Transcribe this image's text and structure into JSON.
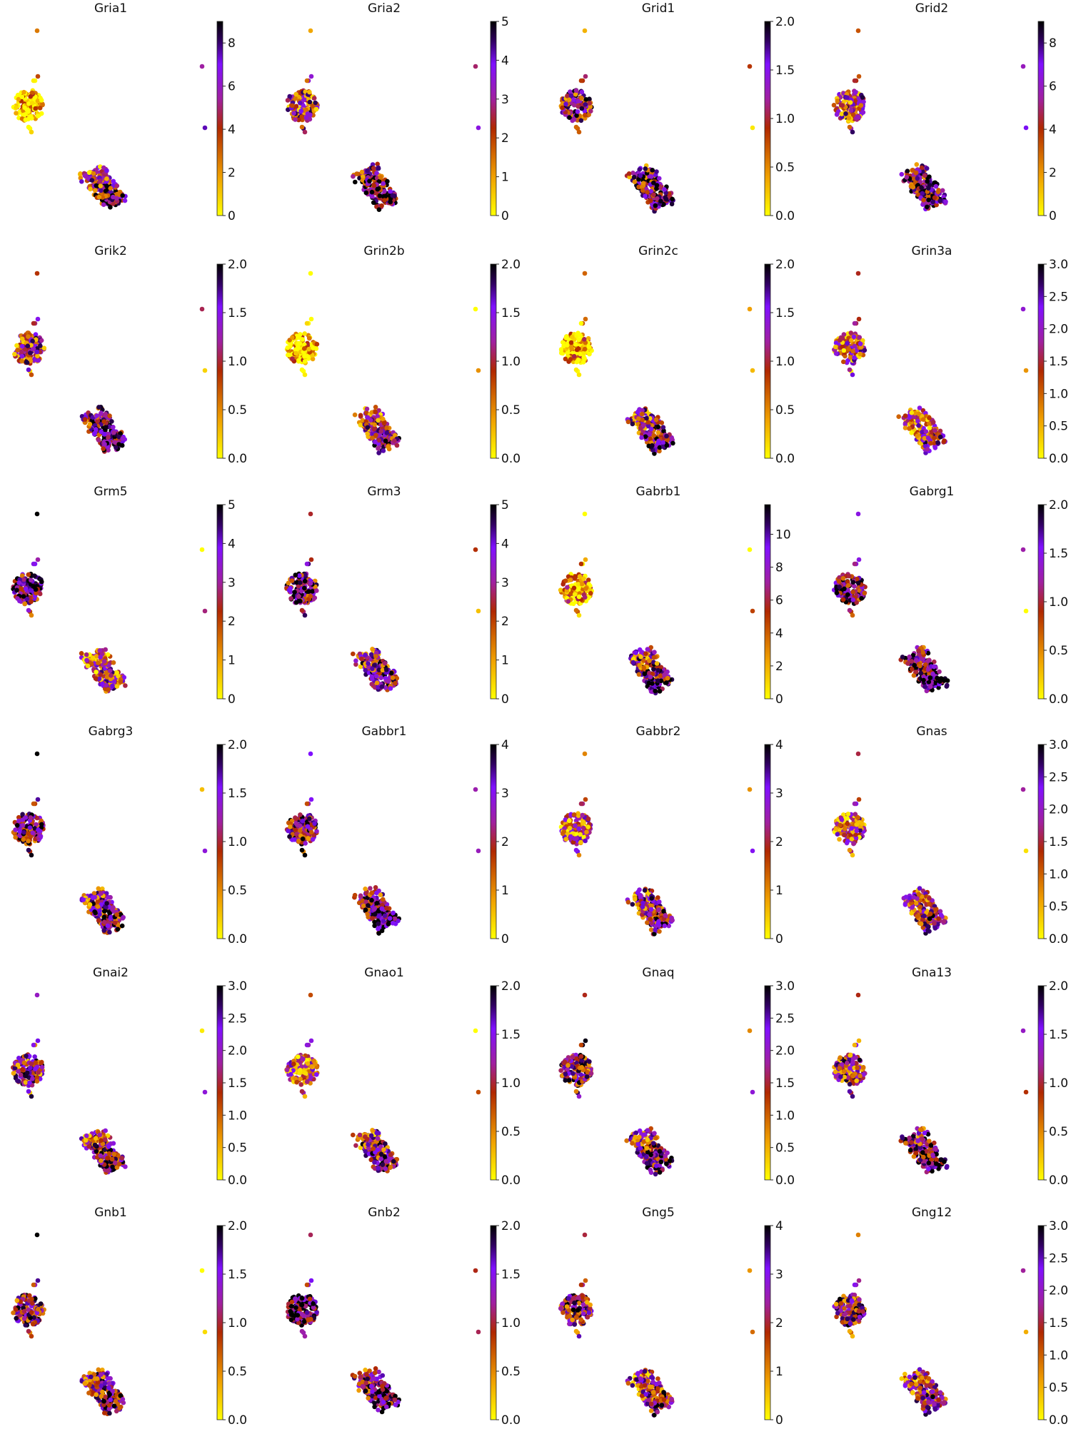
{
  "chart_data": {
    "type": "scatter",
    "description_kind": "UMAP embedding colored by gene expression, 24 small multiples",
    "colormap": [
      "#ffff00",
      "#f0a000",
      "#b02800",
      "#a020a0",
      "#8010ff",
      "#300060",
      "#000000"
    ],
    "grid": false,
    "panels": [
      {
        "title": "Gria1",
        "vmax": 9,
        "ticks": [
          "0",
          "2",
          "4",
          "6",
          "8"
        ],
        "tick_values": [
          0,
          2,
          4,
          6,
          8
        ],
        "cluster_levels": [
          0.05,
          0.6
        ]
      },
      {
        "title": "Gria2",
        "vmax": 5,
        "ticks": [
          "0",
          "1",
          "2",
          "3",
          "4",
          "5"
        ],
        "tick_values": [
          0,
          1,
          2,
          3,
          4,
          5
        ],
        "cluster_levels": [
          0.5,
          0.7
        ]
      },
      {
        "title": "Grid1",
        "vmax": 2,
        "ticks": [
          "0.0",
          "0.5",
          "1.0",
          "1.5",
          "2.0"
        ],
        "tick_values": [
          0,
          0.5,
          1,
          1.5,
          2
        ],
        "cluster_levels": [
          0.6,
          0.7
        ]
      },
      {
        "title": "Grid2",
        "vmax": 9,
        "ticks": [
          "0",
          "2",
          "4",
          "6",
          "8"
        ],
        "tick_values": [
          0,
          2,
          4,
          6,
          8
        ],
        "cluster_levels": [
          0.5,
          0.7
        ]
      },
      {
        "title": "Grik2",
        "vmax": 2,
        "ticks": [
          "0.0",
          "0.5",
          "1.0",
          "1.5",
          "2.0"
        ],
        "tick_values": [
          0,
          0.5,
          1,
          1.5,
          2
        ],
        "cluster_levels": [
          0.5,
          0.7
        ]
      },
      {
        "title": "Grin2b",
        "vmax": 2,
        "ticks": [
          "0.0",
          "0.5",
          "1.0",
          "1.5",
          "2.0"
        ],
        "tick_values": [
          0,
          0.5,
          1,
          1.5,
          2
        ],
        "cluster_levels": [
          0.1,
          0.55
        ]
      },
      {
        "title": "Grin2c",
        "vmax": 2,
        "ticks": [
          "0.0",
          "0.5",
          "1.0",
          "1.5",
          "2.0"
        ],
        "tick_values": [
          0,
          0.5,
          1,
          1.5,
          2
        ],
        "cluster_levels": [
          0.08,
          0.6
        ]
      },
      {
        "title": "Grin3a",
        "vmax": 3,
        "ticks": [
          "0.0",
          "0.5",
          "1.0",
          "1.5",
          "2.0",
          "2.5",
          "3.0"
        ],
        "tick_values": [
          0,
          0.5,
          1,
          1.5,
          2,
          2.5,
          3
        ],
        "cluster_levels": [
          0.45,
          0.45
        ]
      },
      {
        "title": "Grm5",
        "vmax": 5,
        "ticks": [
          "0",
          "1",
          "2",
          "3",
          "4",
          "5"
        ],
        "tick_values": [
          0,
          1,
          2,
          3,
          4,
          5
        ],
        "cluster_levels": [
          0.7,
          0.45
        ]
      },
      {
        "title": "Grm3",
        "vmax": 5,
        "ticks": [
          "0",
          "1",
          "2",
          "3",
          "4",
          "5"
        ],
        "tick_values": [
          0,
          1,
          2,
          3,
          4,
          5
        ],
        "cluster_levels": [
          0.65,
          0.6
        ]
      },
      {
        "title": "Gabrb1",
        "vmax": 11.8,
        "ticks": [
          "0",
          "2",
          "4",
          "6",
          "8",
          "10"
        ],
        "tick_values": [
          0,
          2,
          4,
          6,
          8,
          10
        ],
        "cluster_levels": [
          0.15,
          0.6
        ]
      },
      {
        "title": "Gabrg1",
        "vmax": 2,
        "ticks": [
          "0.0",
          "0.5",
          "1.0",
          "1.5",
          "2.0"
        ],
        "tick_values": [
          0,
          0.5,
          1,
          1.5,
          2
        ],
        "cluster_levels": [
          0.7,
          0.75
        ]
      },
      {
        "title": "Gabrg3",
        "vmax": 2,
        "ticks": [
          "0.0",
          "0.5",
          "1.0",
          "1.5",
          "2.0"
        ],
        "tick_values": [
          0,
          0.5,
          1,
          1.5,
          2
        ],
        "cluster_levels": [
          0.65,
          0.6
        ]
      },
      {
        "title": "Gabbr1",
        "vmax": 4,
        "ticks": [
          "0",
          "1",
          "2",
          "3",
          "4"
        ],
        "tick_values": [
          0,
          1,
          2,
          3,
          4
        ],
        "cluster_levels": [
          0.65,
          0.7
        ]
      },
      {
        "title": "Gabbr2",
        "vmax": 4,
        "ticks": [
          "0",
          "1",
          "2",
          "3",
          "4"
        ],
        "tick_values": [
          0,
          1,
          2,
          3,
          4
        ],
        "cluster_levels": [
          0.4,
          0.6
        ]
      },
      {
        "title": "Gnas",
        "vmax": 3,
        "ticks": [
          "0.0",
          "0.5",
          "1.0",
          "1.5",
          "2.0",
          "2.5",
          "3.0"
        ],
        "tick_values": [
          0,
          0.5,
          1,
          1.5,
          2,
          2.5,
          3
        ],
        "cluster_levels": [
          0.45,
          0.55
        ]
      },
      {
        "title": "Gnai2",
        "vmax": 3,
        "ticks": [
          "0.0",
          "0.5",
          "1.0",
          "1.5",
          "2.0",
          "2.5",
          "3.0"
        ],
        "tick_values": [
          0,
          0.5,
          1,
          1.5,
          2,
          2.5,
          3
        ],
        "cluster_levels": [
          0.55,
          0.6
        ]
      },
      {
        "title": "Gnao1",
        "vmax": 2,
        "ticks": [
          "0.0",
          "0.5",
          "1.0",
          "1.5",
          "2.0"
        ],
        "tick_values": [
          0,
          0.5,
          1,
          1.5,
          2
        ],
        "cluster_levels": [
          0.4,
          0.6
        ]
      },
      {
        "title": "Gnaq",
        "vmax": 3,
        "ticks": [
          "0.0",
          "0.5",
          "1.0",
          "1.5",
          "2.0",
          "2.5",
          "3.0"
        ],
        "tick_values": [
          0,
          0.5,
          1,
          1.5,
          2,
          2.5,
          3
        ],
        "cluster_levels": [
          0.6,
          0.6
        ]
      },
      {
        "title": "Gna13",
        "vmax": 2,
        "ticks": [
          "0.0",
          "0.5",
          "1.0",
          "1.5",
          "2.0"
        ],
        "tick_values": [
          0,
          0.5,
          1,
          1.5,
          2
        ],
        "cluster_levels": [
          0.55,
          0.7
        ]
      },
      {
        "title": "Gnb1",
        "vmax": 2,
        "ticks": [
          "0.0",
          "0.5",
          "1.0",
          "1.5",
          "2.0"
        ],
        "tick_values": [
          0,
          0.5,
          1,
          1.5,
          2
        ],
        "cluster_levels": [
          0.6,
          0.65
        ]
      },
      {
        "title": "Gnb2",
        "vmax": 2,
        "ticks": [
          "0.0",
          "0.5",
          "1.0",
          "1.5",
          "2.0"
        ],
        "tick_values": [
          0,
          0.5,
          1,
          1.5,
          2
        ],
        "cluster_levels": [
          0.8,
          0.65
        ]
      },
      {
        "title": "Gng5",
        "vmax": 4,
        "ticks": [
          "0",
          "1",
          "2",
          "3",
          "4"
        ],
        "tick_values": [
          0,
          1,
          2,
          3,
          4
        ],
        "cluster_levels": [
          0.6,
          0.55
        ]
      },
      {
        "title": "Gng12",
        "vmax": 3,
        "ticks": [
          "0.0",
          "0.5",
          "1.0",
          "1.5",
          "2.0",
          "2.5",
          "3.0"
        ],
        "tick_values": [
          0,
          0.5,
          1,
          1.5,
          2,
          2.5,
          3
        ],
        "cluster_levels": [
          0.6,
          0.55
        ]
      }
    ]
  }
}
